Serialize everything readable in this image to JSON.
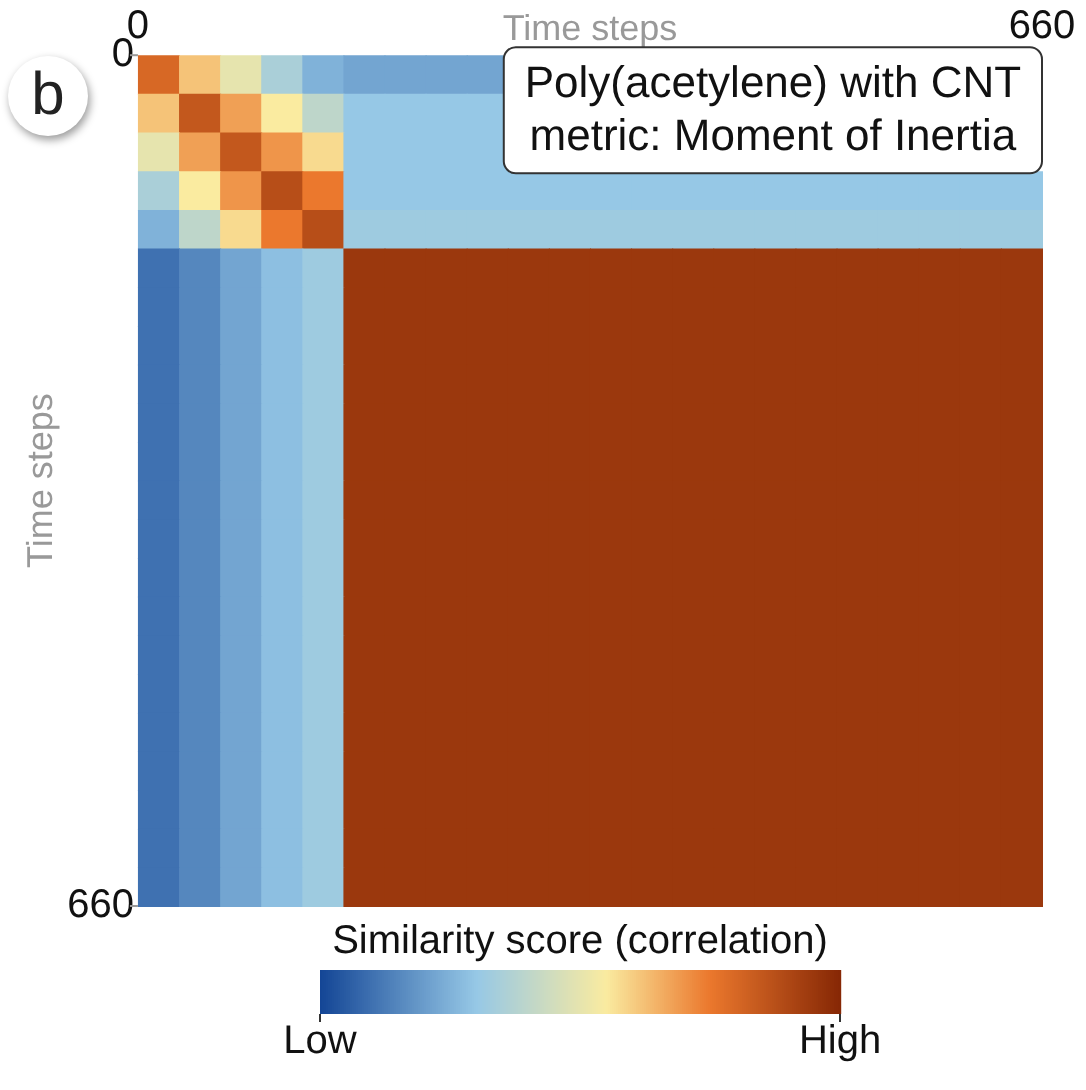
{
  "chart_data": {
    "type": "heatmap",
    "title": "Poly(acetylene) with CNT",
    "subtitle": "metric: Moment of Inertia",
    "xlabel": "Time steps",
    "ylabel": "Time steps",
    "clabel": "Similarity score (correlation)",
    "annotations": [
      "b"
    ],
    "xlim": [
      0,
      660
    ],
    "xticks": [
      0,
      660
    ],
    "ylim": [
      660,
      0
    ],
    "yticks": [
      0,
      660
    ],
    "clim": [
      0,
      1
    ],
    "cticks": [
      {
        "value": 0,
        "label": "Low"
      },
      {
        "value": 1,
        "label": "High"
      }
    ],
    "cells": [
      [
        0.8,
        0.62,
        0.5,
        0.35,
        0.25,
        0.22,
        0.22,
        0.22,
        0.22,
        null,
        null,
        null,
        null,
        null,
        null,
        null,
        null,
        null,
        null,
        null,
        null,
        null
      ],
      [
        0.62,
        0.85,
        0.68,
        0.55,
        0.4,
        0.3,
        0.3,
        0.3,
        0.3,
        null,
        null,
        null,
        null,
        null,
        null,
        null,
        null,
        null,
        null,
        null,
        null,
        null
      ],
      [
        0.5,
        0.68,
        0.85,
        0.7,
        0.58,
        0.3,
        0.3,
        0.3,
        0.3,
        null,
        null,
        null,
        null,
        null,
        null,
        null,
        null,
        null,
        null,
        null,
        null,
        null
      ],
      [
        0.35,
        0.55,
        0.7,
        0.88,
        0.75,
        0.3,
        0.3,
        0.3,
        0.3,
        0.3,
        0.3,
        0.3,
        0.3,
        0.3,
        0.3,
        0.3,
        0.3,
        0.3,
        0.3,
        0.3,
        0.3,
        0.3
      ],
      [
        0.25,
        0.4,
        0.58,
        0.75,
        0.88,
        0.32,
        0.32,
        0.32,
        0.32,
        0.32,
        0.32,
        0.32,
        0.32,
        0.32,
        0.32,
        0.32,
        0.32,
        0.32,
        0.32,
        0.32,
        0.32,
        0.32
      ],
      [
        0.1,
        0.15,
        0.22,
        0.28,
        0.32,
        0.95,
        0.95,
        0.95,
        0.95,
        0.95,
        0.95,
        0.95,
        0.95,
        0.95,
        0.95,
        0.95,
        0.95,
        0.95,
        0.95,
        0.95,
        0.95,
        0.95
      ],
      [
        0.1,
        0.15,
        0.22,
        0.28,
        0.32,
        0.95,
        0.95,
        0.95,
        0.95,
        0.95,
        0.95,
        0.95,
        0.95,
        0.95,
        0.95,
        0.95,
        0.95,
        0.95,
        0.95,
        0.95,
        0.95,
        0.95
      ],
      [
        0.1,
        0.15,
        0.22,
        0.28,
        0.32,
        0.95,
        0.95,
        0.95,
        0.95,
        0.95,
        0.95,
        0.95,
        0.95,
        0.95,
        0.95,
        0.95,
        0.95,
        0.95,
        0.95,
        0.95,
        0.95,
        0.95
      ],
      [
        0.1,
        0.15,
        0.22,
        0.28,
        0.32,
        0.95,
        0.95,
        0.95,
        0.95,
        0.95,
        0.95,
        0.95,
        0.95,
        0.95,
        0.95,
        0.95,
        0.95,
        0.95,
        0.95,
        0.95,
        0.95,
        0.95
      ],
      [
        0.1,
        0.15,
        0.22,
        0.28,
        0.32,
        0.95,
        0.95,
        0.95,
        0.95,
        0.95,
        0.95,
        0.95,
        0.95,
        0.95,
        0.95,
        0.95,
        0.95,
        0.95,
        0.95,
        0.95,
        0.95,
        0.95
      ],
      [
        0.1,
        0.15,
        0.22,
        0.28,
        0.32,
        0.95,
        0.95,
        0.95,
        0.95,
        0.95,
        0.95,
        0.95,
        0.95,
        0.95,
        0.95,
        0.95,
        0.95,
        0.95,
        0.95,
        0.95,
        0.95,
        0.95
      ],
      [
        0.1,
        0.15,
        0.22,
        0.28,
        0.32,
        0.95,
        0.95,
        0.95,
        0.95,
        0.95,
        0.95,
        0.95,
        0.95,
        0.95,
        0.95,
        0.95,
        0.95,
        0.95,
        0.95,
        0.95,
        0.95,
        0.95
      ],
      [
        0.1,
        0.15,
        0.22,
        0.28,
        0.32,
        0.95,
        0.95,
        0.95,
        0.95,
        0.95,
        0.95,
        0.95,
        0.95,
        0.95,
        0.95,
        0.95,
        0.95,
        0.95,
        0.95,
        0.95,
        0.95,
        0.95
      ],
      [
        0.1,
        0.15,
        0.22,
        0.28,
        0.32,
        0.95,
        0.95,
        0.95,
        0.95,
        0.95,
        0.95,
        0.95,
        0.95,
        0.95,
        0.95,
        0.95,
        0.95,
        0.95,
        0.95,
        0.95,
        0.95,
        0.95
      ],
      [
        0.1,
        0.15,
        0.22,
        0.28,
        0.32,
        0.95,
        0.95,
        0.95,
        0.95,
        0.95,
        0.95,
        0.95,
        0.95,
        0.95,
        0.95,
        0.95,
        0.95,
        0.95,
        0.95,
        0.95,
        0.95,
        0.95
      ],
      [
        0.1,
        0.15,
        0.22,
        0.28,
        0.32,
        0.95,
        0.95,
        0.95,
        0.95,
        0.95,
        0.95,
        0.95,
        0.95,
        0.95,
        0.95,
        0.95,
        0.95,
        0.95,
        0.95,
        0.95,
        0.95,
        0.95
      ],
      [
        0.1,
        0.15,
        0.22,
        0.28,
        0.32,
        0.95,
        0.95,
        0.95,
        0.95,
        0.95,
        0.95,
        0.95,
        0.95,
        0.95,
        0.95,
        0.95,
        0.95,
        0.95,
        0.95,
        0.95,
        0.95,
        0.95
      ],
      [
        0.1,
        0.15,
        0.22,
        0.28,
        0.32,
        0.95,
        0.95,
        0.95,
        0.95,
        0.95,
        0.95,
        0.95,
        0.95,
        0.95,
        0.95,
        0.95,
        0.95,
        0.95,
        0.95,
        0.95,
        0.95,
        0.95
      ],
      [
        0.1,
        0.15,
        0.22,
        0.28,
        0.32,
        0.95,
        0.95,
        0.95,
        0.95,
        0.95,
        0.95,
        0.95,
        0.95,
        0.95,
        0.95,
        0.95,
        0.95,
        0.95,
        0.95,
        0.95,
        0.95,
        0.95
      ],
      [
        0.1,
        0.15,
        0.22,
        0.28,
        0.32,
        0.95,
        0.95,
        0.95,
        0.95,
        0.95,
        0.95,
        0.95,
        0.95,
        0.95,
        0.95,
        0.95,
        0.95,
        0.95,
        0.95,
        0.95,
        0.95,
        0.95
      ],
      [
        0.1,
        0.15,
        0.22,
        0.28,
        0.32,
        0.95,
        0.95,
        0.95,
        0.95,
        0.95,
        0.95,
        0.95,
        0.95,
        0.95,
        0.95,
        0.95,
        0.95,
        0.95,
        0.95,
        0.95,
        0.95,
        0.95
      ],
      [
        0.1,
        0.15,
        0.22,
        0.28,
        0.32,
        0.95,
        0.95,
        0.95,
        0.95,
        0.95,
        0.95,
        0.95,
        0.95,
        0.95,
        0.95,
        0.95,
        0.95,
        0.95,
        0.95,
        0.95,
        0.95,
        0.95
      ]
    ]
  }
}
